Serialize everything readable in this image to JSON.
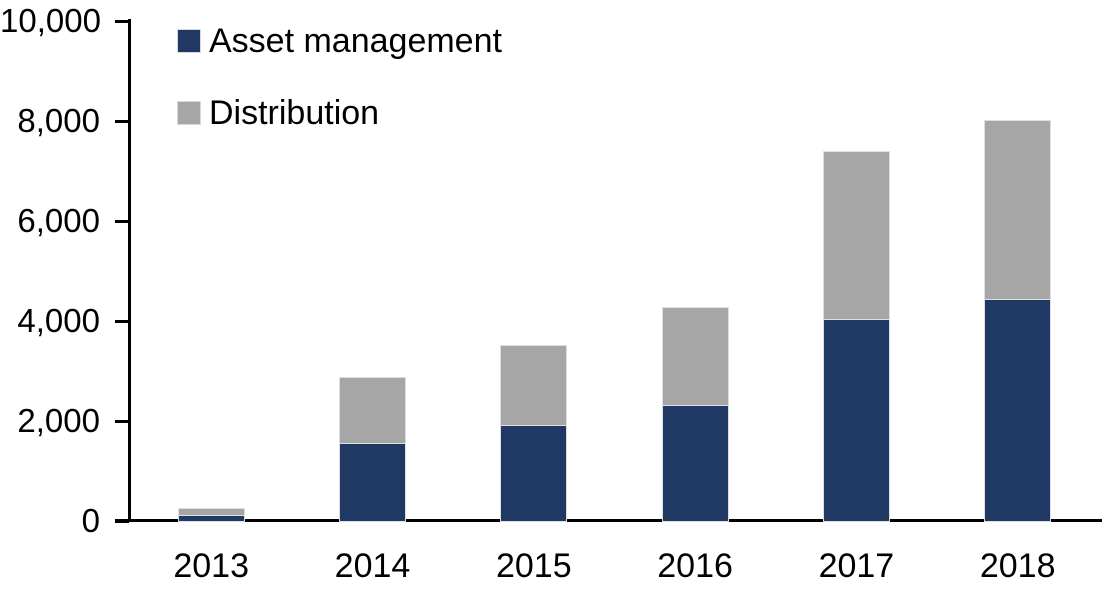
{
  "chart_data": {
    "type": "bar",
    "stacked": true,
    "title": "",
    "xlabel": "",
    "ylabel": "",
    "categories": [
      "2013",
      "2014",
      "2015",
      "2016",
      "2017",
      "2018"
    ],
    "series": [
      {
        "name": "Asset management",
        "color": "#1F3864",
        "values": [
          130,
          1560,
          1920,
          2330,
          4040,
          4440
        ]
      },
      {
        "name": "Distribution",
        "color": "#A6A6A6",
        "values": [
          110,
          1300,
          1580,
          1930,
          3340,
          3560
        ]
      }
    ],
    "totals": [
      240,
      2860,
      3500,
      4260,
      7380,
      8000
    ],
    "ylim": [
      0,
      10000
    ],
    "yticks": [
      0,
      2000,
      4000,
      6000,
      8000,
      10000
    ],
    "ytick_labels": [
      "0",
      "2,000",
      "4,000",
      "6,000",
      "8,000",
      "10,000"
    ],
    "legend_position": "top-left",
    "grid": false,
    "axis_color": "#000000",
    "background": "#FFFFFF"
  }
}
